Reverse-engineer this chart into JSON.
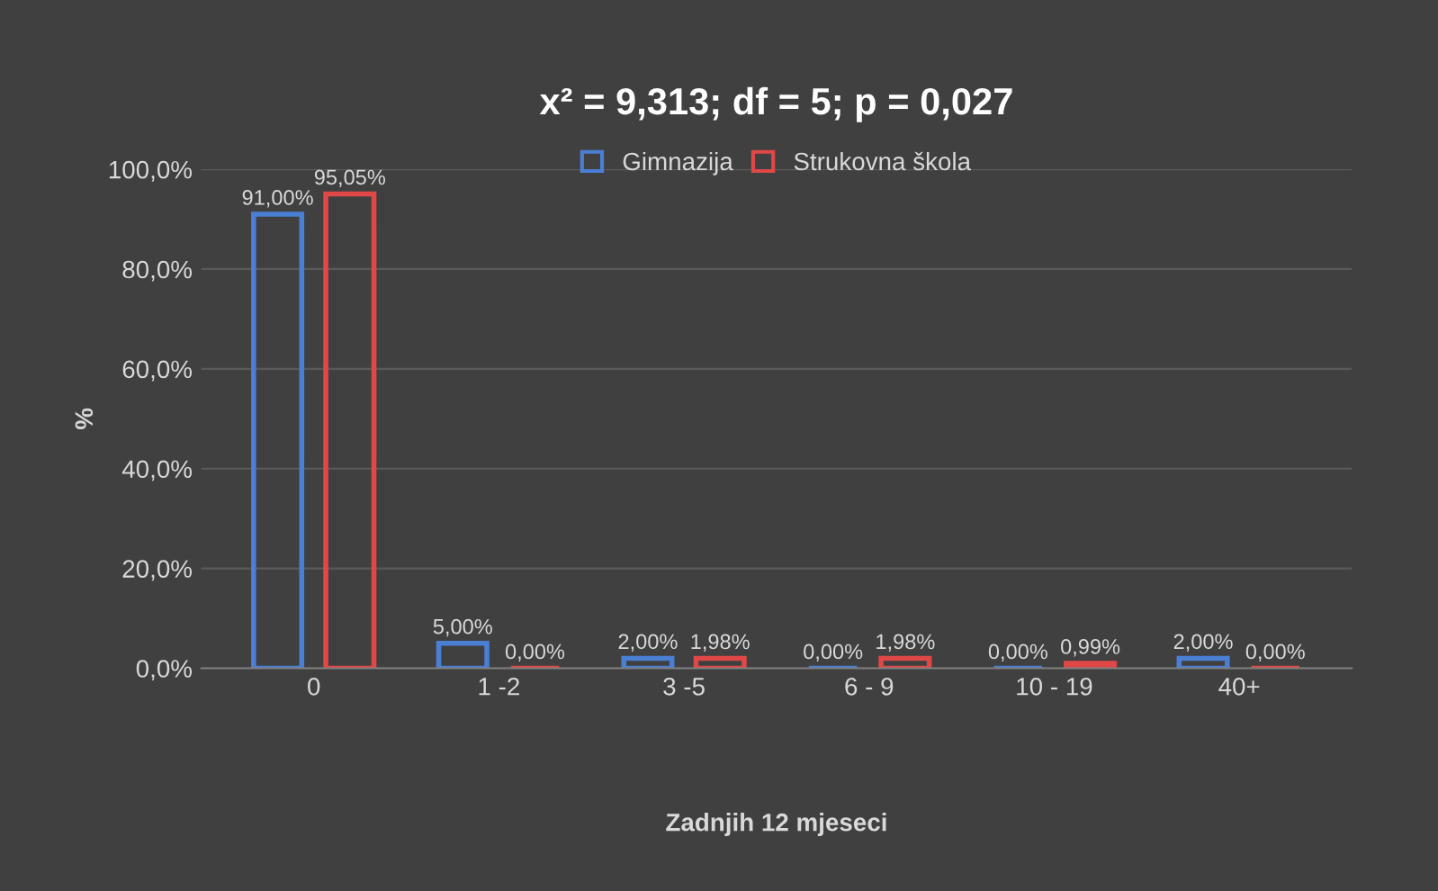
{
  "chart_data": {
    "type": "bar",
    "title": "x² = 9,313; df = 5; p = 0,027",
    "xlabel": "Zadnjih 12 mjeseci",
    "ylabel": "%",
    "categories": [
      "0",
      "1 -2",
      "3 -5",
      "6 - 9",
      "10 - 19",
      "40+"
    ],
    "series": [
      {
        "name": "Gimnazija",
        "color": "#4a7fd4",
        "values": [
          91.0,
          5.0,
          2.0,
          0.0,
          0.0,
          2.0
        ],
        "value_labels": [
          "91,00%",
          "5,00%",
          "2,00%",
          "0,00%",
          "0,00%",
          "2,00%"
        ]
      },
      {
        "name": "Strukovna škola",
        "color": "#e04848",
        "values": [
          95.05,
          0.0,
          1.98,
          1.98,
          0.99,
          0.0
        ],
        "value_labels": [
          "95,05%",
          "0,00%",
          "1,98%",
          "1,98%",
          "0,99%",
          "0,00%"
        ]
      }
    ],
    "ylim": [
      0,
      100
    ],
    "yticks": [
      {
        "value": 0,
        "label": "0,0%"
      },
      {
        "value": 20,
        "label": "20,0%"
      },
      {
        "value": 40,
        "label": "40,0%"
      },
      {
        "value": 60,
        "label": "60,0%"
      },
      {
        "value": 80,
        "label": "80,0%"
      },
      {
        "value": 100,
        "label": "100,0%"
      }
    ],
    "grid": "y",
    "legend": "top"
  }
}
